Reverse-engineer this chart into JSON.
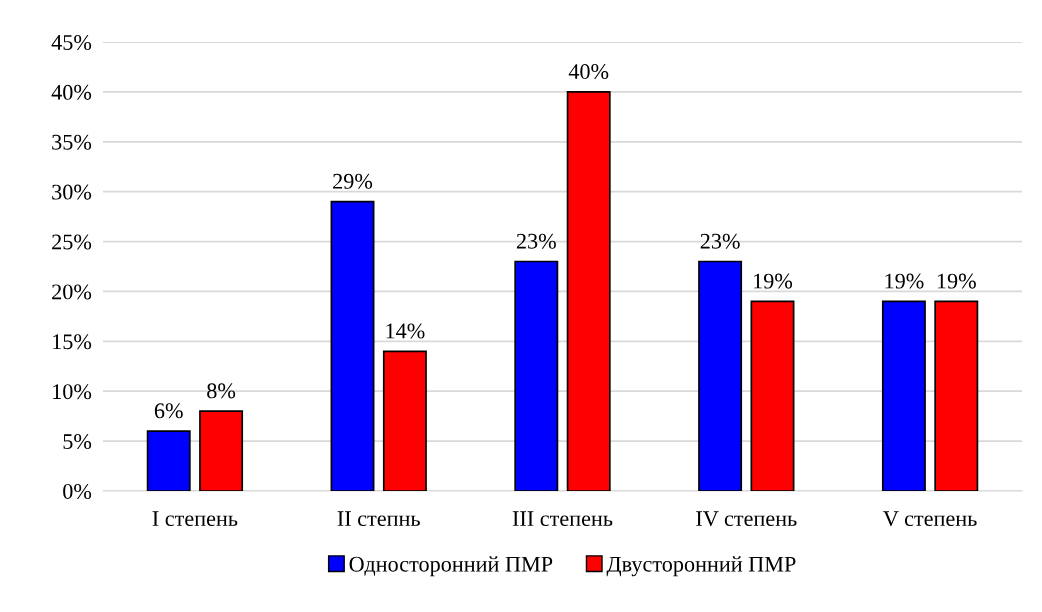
{
  "chart_data": {
    "type": "bar",
    "categories": [
      "I степень",
      "II степнь",
      "III степень",
      "IV степень",
      "V степень"
    ],
    "series": [
      {
        "name": "Односторонний ПМР",
        "color": "#0000ff",
        "values": [
          6,
          29,
          23,
          23,
          19
        ],
        "value_labels": [
          "6%",
          "29%",
          "23%",
          "23%",
          "19%"
        ]
      },
      {
        "name": "Двусторонний ПМР",
        "color": "#ff0000",
        "values": [
          8,
          14,
          40,
          19,
          19
        ],
        "value_labels": [
          "8%",
          "14%",
          "40%",
          "19%",
          "19%"
        ]
      }
    ],
    "ylim": [
      0,
      45
    ],
    "yticks": [
      {
        "value": 0,
        "label": "0%"
      },
      {
        "value": 5,
        "label": "5%"
      },
      {
        "value": 10,
        "label": "10%"
      },
      {
        "value": 15,
        "label": "15%"
      },
      {
        "value": 20,
        "label": "20%"
      },
      {
        "value": 25,
        "label": "25%"
      },
      {
        "value": 30,
        "label": "30%"
      },
      {
        "value": 35,
        "label": "35%"
      },
      {
        "value": 40,
        "label": "40%"
      },
      {
        "value": 45,
        "label": "45%"
      }
    ],
    "grid": "y",
    "legend": "bottom"
  }
}
